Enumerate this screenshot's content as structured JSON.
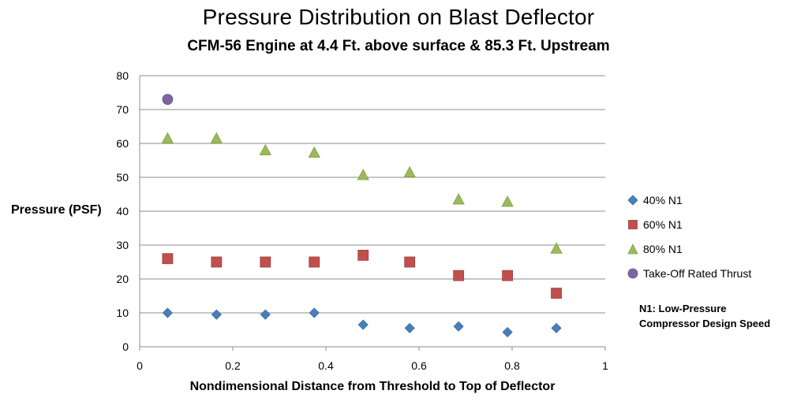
{
  "chart_data": {
    "type": "scatter",
    "title": "Pressure Distribution on Blast Deflector",
    "subtitle": "CFM-56 Engine at 4.4 Ft. above surface & 85.3 Ft. Upstream",
    "xlabel": "Nondimensional Distance from Threshold to Top of Deflector",
    "ylabel": "Pressure (PSF)",
    "xlim": [
      0,
      1
    ],
    "ylim": [
      0,
      80
    ],
    "x_ticks": [
      "0",
      "0.2",
      "0.4",
      "0.6",
      "0.8",
      "1"
    ],
    "y_ticks": [
      "0",
      "10",
      "20",
      "30",
      "40",
      "50",
      "60",
      "70",
      "80"
    ],
    "grid": "horizontal",
    "legend_position": "right",
    "series": [
      {
        "name": "40% N1",
        "marker": "diamond",
        "color": "#4A7EBB",
        "points": [
          [
            0.06,
            10
          ],
          [
            0.165,
            9.5
          ],
          [
            0.27,
            9.5
          ],
          [
            0.375,
            10
          ],
          [
            0.48,
            6.5
          ],
          [
            0.58,
            5.5
          ],
          [
            0.685,
            6
          ],
          [
            0.79,
            4.3
          ],
          [
            0.895,
            5.5
          ]
        ]
      },
      {
        "name": "60% N1",
        "marker": "square",
        "color": "#C0504D",
        "points": [
          [
            0.06,
            26
          ],
          [
            0.165,
            25
          ],
          [
            0.27,
            25
          ],
          [
            0.375,
            25
          ],
          [
            0.48,
            27
          ],
          [
            0.58,
            25
          ],
          [
            0.685,
            21
          ],
          [
            0.79,
            21
          ],
          [
            0.895,
            15.8
          ]
        ]
      },
      {
        "name": "80% N1",
        "marker": "triangle",
        "color": "#9BBB59",
        "points": [
          [
            0.06,
            61.5
          ],
          [
            0.165,
            61.5
          ],
          [
            0.27,
            58
          ],
          [
            0.375,
            57.3
          ],
          [
            0.48,
            50.7
          ],
          [
            0.58,
            51.5
          ],
          [
            0.685,
            43.5
          ],
          [
            0.79,
            42.8
          ],
          [
            0.895,
            29
          ]
        ]
      },
      {
        "name": "Take-Off Rated Thrust",
        "marker": "circle",
        "color": "#8064A2",
        "points": [
          [
            0.06,
            73
          ]
        ]
      }
    ],
    "annotation": {
      "line1": "N1: Low-Pressure",
      "line2": "Compressor Design Speed"
    }
  }
}
